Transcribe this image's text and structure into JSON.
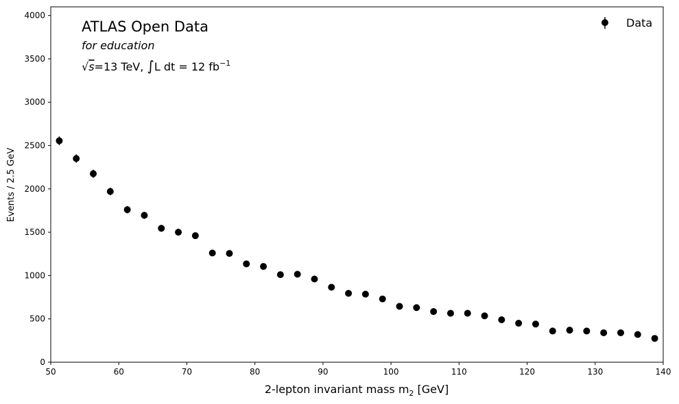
{
  "chart_data": {
    "type": "scatter",
    "title": "ATLAS Open Data",
    "subtitle": "for education",
    "energy_label": "=13 TeV, ",
    "lumi_label": "L dt = 12 fb",
    "xlabel": "2-lepton invariant mass m",
    "xlabel_sub": "2",
    "xlabel_unit": " [GeV]",
    "ylabel": "Events / 2.5 GeV",
    "xlim": [
      50,
      140
    ],
    "ylim": [
      0,
      4100
    ],
    "xticks": [
      50,
      60,
      70,
      80,
      90,
      100,
      110,
      120,
      130,
      140
    ],
    "yticks": [
      0,
      500,
      1000,
      1500,
      2000,
      2500,
      3000,
      3500,
      4000
    ],
    "legend": {
      "label": "Data",
      "position": "top-right"
    },
    "series": [
      {
        "name": "Data",
        "color": "#000000",
        "x": [
          51.25,
          53.75,
          56.25,
          58.75,
          61.25,
          63.75,
          66.25,
          68.75,
          71.25,
          73.75,
          76.25,
          78.75,
          81.25,
          83.75,
          86.25,
          88.75,
          91.25,
          93.75,
          96.25,
          98.75,
          101.25,
          103.75,
          106.25,
          108.75,
          111.25,
          113.75,
          116.25,
          118.75,
          121.25,
          123.75,
          126.25,
          128.75,
          131.25,
          133.75,
          136.25,
          138.75
        ],
        "y": [
          2555,
          2350,
          2175,
          1970,
          1760,
          1695,
          1545,
          1500,
          1460,
          1260,
          1255,
          1135,
          1105,
          1010,
          1015,
          960,
          865,
          795,
          785,
          730,
          645,
          630,
          585,
          565,
          565,
          535,
          490,
          450,
          440,
          360,
          370,
          360,
          340,
          340,
          320,
          275
        ]
      }
    ]
  }
}
